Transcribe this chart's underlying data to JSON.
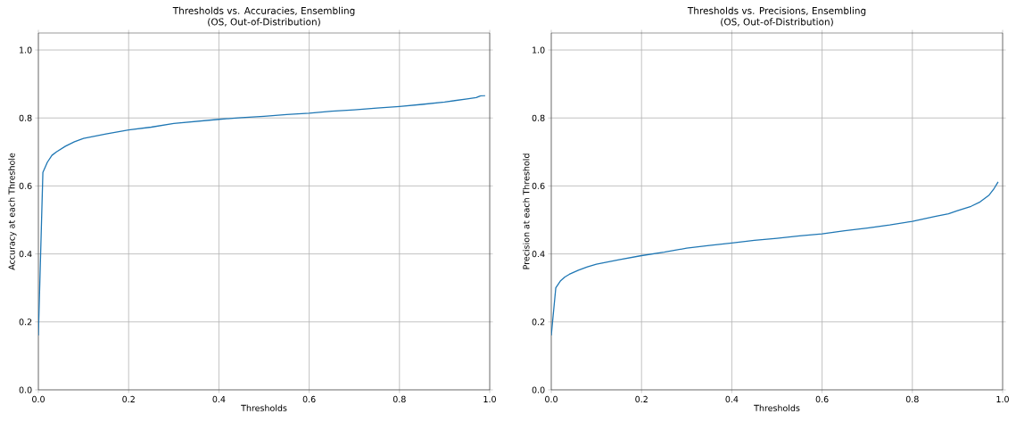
{
  "chart_data": [
    {
      "type": "line",
      "title": "Thresholds vs. Accuracies, Ensembling",
      "subtitle": "(OS, Out-of-Distribution)",
      "xlabel": "Thresholds",
      "ylabel": "Accuracy at each Threshole",
      "x": [
        0,
        0.01,
        0.02,
        0.03,
        0.04,
        0.06,
        0.08,
        0.1,
        0.15,
        0.2,
        0.25,
        0.3,
        0.35,
        0.4,
        0.45,
        0.5,
        0.55,
        0.6,
        0.65,
        0.7,
        0.75,
        0.8,
        0.85,
        0.9,
        0.95,
        0.97,
        0.98,
        0.99
      ],
      "series": [
        {
          "color": "#1f77b4",
          "values": [
            0.16,
            0.64,
            0.67,
            0.69,
            0.7,
            0.717,
            0.73,
            0.74,
            0.753,
            0.765,
            0.773,
            0.784,
            0.79,
            0.796,
            0.801,
            0.805,
            0.81,
            0.814,
            0.82,
            0.824,
            0.829,
            0.834,
            0.84,
            0.847,
            0.856,
            0.86,
            0.865,
            0.866
          ]
        }
      ],
      "xlim": [
        0,
        1
      ],
      "ylim": [
        0,
        1.05
      ],
      "xticks": [
        {
          "value": 0,
          "label": "0.0"
        },
        {
          "value": 0.2,
          "label": "0.2"
        },
        {
          "value": 0.4,
          "label": "0.4"
        },
        {
          "value": 0.6,
          "label": "0.6"
        },
        {
          "value": 0.8,
          "label": "0.8"
        },
        {
          "value": 1,
          "label": "1.0"
        }
      ],
      "yticks": [
        {
          "value": 0,
          "label": "0.0"
        },
        {
          "value": 0.2,
          "label": "0.2"
        },
        {
          "value": 0.4,
          "label": "0.4"
        },
        {
          "value": 0.6,
          "label": "0.6"
        },
        {
          "value": 0.8,
          "label": "0.8"
        },
        {
          "value": 1,
          "label": "1.0"
        }
      ],
      "grid": true,
      "marker": "none",
      "line_style": "solid"
    },
    {
      "type": "line",
      "title": "Thresholds vs. Precisions, Ensembling",
      "subtitle": "(OS, Out-of-Distribution)",
      "xlabel": "Thresholds",
      "ylabel": "Precision at each Threshold",
      "x": [
        0,
        0.01,
        0.02,
        0.03,
        0.04,
        0.06,
        0.08,
        0.1,
        0.15,
        0.2,
        0.25,
        0.3,
        0.35,
        0.4,
        0.45,
        0.5,
        0.55,
        0.6,
        0.65,
        0.7,
        0.75,
        0.8,
        0.85,
        0.88,
        0.9,
        0.93,
        0.95,
        0.97,
        0.98,
        0.99
      ],
      "series": [
        {
          "color": "#1f77b4",
          "values": [
            0.16,
            0.3,
            0.32,
            0.332,
            0.34,
            0.352,
            0.362,
            0.37,
            0.383,
            0.395,
            0.405,
            0.417,
            0.425,
            0.432,
            0.44,
            0.446,
            0.453,
            0.459,
            0.468,
            0.476,
            0.485,
            0.496,
            0.51,
            0.518,
            0.527,
            0.54,
            0.553,
            0.573,
            0.59,
            0.612
          ]
        }
      ],
      "xlim": [
        0,
        1
      ],
      "ylim": [
        0,
        1.05
      ],
      "xticks": [
        {
          "value": 0,
          "label": "0.0"
        },
        {
          "value": 0.2,
          "label": "0.2"
        },
        {
          "value": 0.4,
          "label": "0.4"
        },
        {
          "value": 0.6,
          "label": "0.6"
        },
        {
          "value": 0.8,
          "label": "0.8"
        },
        {
          "value": 1,
          "label": "1.0"
        }
      ],
      "yticks": [
        {
          "value": 0,
          "label": "0.0"
        },
        {
          "value": 0.2,
          "label": "0.2"
        },
        {
          "value": 0.4,
          "label": "0.4"
        },
        {
          "value": 0.6,
          "label": "0.6"
        },
        {
          "value": 0.8,
          "label": "0.8"
        },
        {
          "value": 1,
          "label": "1.0"
        }
      ],
      "grid": true,
      "marker": "none",
      "line_style": "solid"
    }
  ]
}
